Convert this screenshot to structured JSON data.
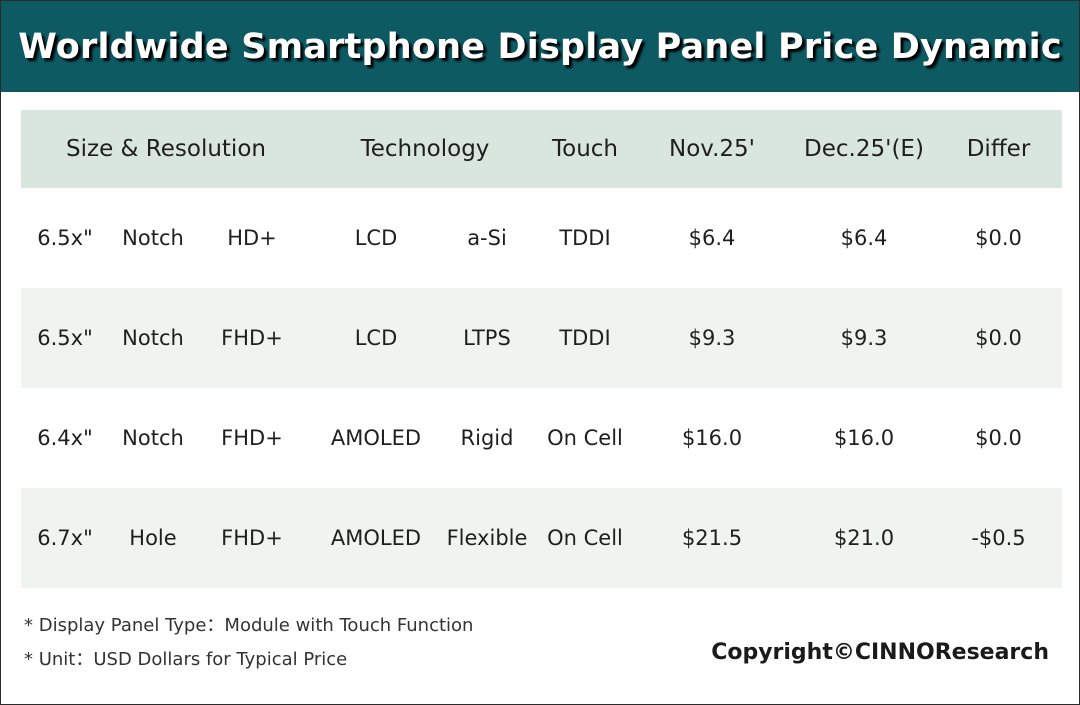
{
  "title": "Worldwide Smartphone Display Panel Price Dynamic",
  "table": {
    "headers": {
      "size_resolution": "Size & Resolution",
      "technology": "Technology",
      "touch": "Touch",
      "nov": "Nov.25'",
      "dec": "Dec.25'(E)",
      "differ": "Differ"
    },
    "rows": [
      {
        "size": "6.5x\"",
        "shape": "Notch",
        "resolution": "HD+",
        "tech": "LCD",
        "subtech": "a-Si",
        "touch": "TDDI",
        "nov": "$6.4",
        "dec": "$6.4",
        "differ": "$0.0"
      },
      {
        "size": "6.5x\"",
        "shape": "Notch",
        "resolution": "FHD+",
        "tech": "LCD",
        "subtech": "LTPS",
        "touch": "TDDI",
        "nov": "$9.3",
        "dec": "$9.3",
        "differ": "$0.0"
      },
      {
        "size": "6.4x\"",
        "shape": "Notch",
        "resolution": "FHD+",
        "tech": "AMOLED",
        "subtech": "Rigid",
        "touch": "On Cell",
        "nov": "$16.0",
        "dec": "$16.0",
        "differ": "$0.0"
      },
      {
        "size": "6.7x\"",
        "shape": "Hole",
        "resolution": "FHD+",
        "tech": "AMOLED",
        "subtech": "Flexible",
        "touch": "On Cell",
        "nov": "$21.5",
        "dec": "$21.0",
        "differ": "-$0.5"
      }
    ]
  },
  "notes": [
    "* Display Panel Type：Module with Touch Function",
    "* Unit：USD Dollars for Typical Price"
  ],
  "copyright": "Copyright©CINNOResearch",
  "colors": {
    "title_bar": "#0e5a63",
    "header_row": "#d9e6dd",
    "alt_row": "#f0f4f1"
  }
}
